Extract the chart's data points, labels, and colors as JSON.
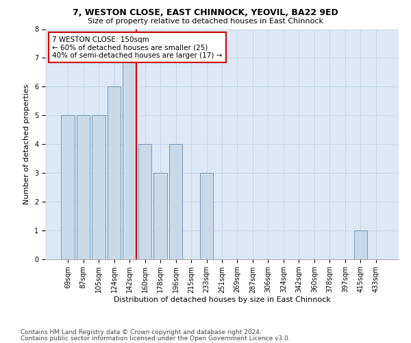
{
  "title": "7, WESTON CLOSE, EAST CHINNOCK, YEOVIL, BA22 9ED",
  "subtitle": "Size of property relative to detached houses in East Chinnock",
  "xlabel": "Distribution of detached houses by size in East Chinnock",
  "ylabel": "Number of detached properties",
  "footnote1": "Contains HM Land Registry data © Crown copyright and database right 2024.",
  "footnote2": "Contains public sector information licensed under the Open Government Licence v3.0.",
  "categories": [
    "69sqm",
    "87sqm",
    "105sqm",
    "124sqm",
    "142sqm",
    "160sqm",
    "178sqm",
    "196sqm",
    "215sqm",
    "233sqm",
    "251sqm",
    "269sqm",
    "287sqm",
    "306sqm",
    "324sqm",
    "342sqm",
    "360sqm",
    "378sqm",
    "397sqm",
    "415sqm",
    "433sqm"
  ],
  "values": [
    5,
    5,
    5,
    6,
    7,
    4,
    3,
    4,
    0,
    3,
    0,
    0,
    0,
    0,
    0,
    0,
    0,
    0,
    0,
    1,
    0
  ],
  "bar_color": "#c9d9e8",
  "bar_edge_color": "#5a8db5",
  "grid_color": "#c8d8e8",
  "background_color": "#dce9f5",
  "annotation_line_color": "#cc0000",
  "annotation_box_text": "7 WESTON CLOSE: 150sqm\n← 60% of detached houses are smaller (25)\n40% of semi-detached houses are larger (17) →",
  "annotation_box_color": "white",
  "annotation_box_edge_color": "#cc0000",
  "ylim": [
    0,
    8
  ],
  "yticks": [
    0,
    1,
    2,
    3,
    4,
    5,
    6,
    7,
    8
  ],
  "title_fontsize": 9,
  "subtitle_fontsize": 8,
  "xlabel_fontsize": 8,
  "ylabel_fontsize": 8,
  "tick_fontsize": 7,
  "annotation_fontsize": 7.5,
  "footnote_fontsize": 6.5
}
